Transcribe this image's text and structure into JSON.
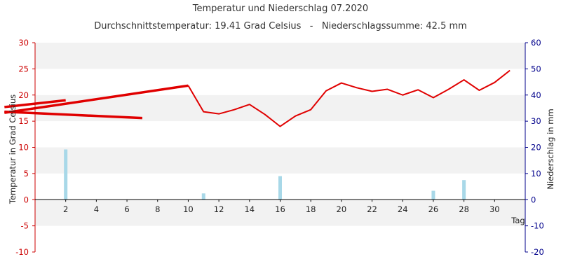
{
  "chart_data": {
    "type": "line",
    "title": "Temperatur und Niederschlag 07.2020",
    "subtitle": "Durchschnittstemperatur: 19.41 Grad Celsius   -   Niederschlagssumme: 42.5 mm",
    "xlabel": "Tag",
    "ylabel_left": "Temperatur in Grad Celsius",
    "ylabel_right": "Niederschlag in mm",
    "xlim": [
      0,
      32
    ],
    "ylim_left": [
      -10,
      30
    ],
    "ylim_right": [
      -20,
      60
    ],
    "x_ticks": [
      2,
      4,
      6,
      8,
      10,
      12,
      14,
      16,
      18,
      20,
      22,
      24,
      26,
      28,
      30
    ],
    "y_ticks_left": [
      -10,
      -5,
      0,
      5,
      10,
      15,
      20,
      25,
      30
    ],
    "y_ticks_right": [
      -20,
      -10,
      0,
      10,
      20,
      30,
      40,
      50,
      60
    ],
    "grid": "horizontal bands",
    "colors": {
      "temperature": "#e00000",
      "precipitation": "#a8d8e8",
      "left_axis": "#cc0000",
      "right_axis": "#00008b",
      "band": "#f2f2f2"
    },
    "series": [
      {
        "kind": "line",
        "axis": "left",
        "x": [
          10,
          11,
          12,
          13,
          14,
          15,
          16,
          17,
          18,
          19,
          20,
          21,
          22,
          23,
          24,
          25,
          26,
          27,
          28,
          29,
          30,
          31
        ],
        "values": [
          21.8,
          16.8,
          16.4,
          17.2,
          18.2,
          16.3,
          14.0,
          16.0,
          17.2,
          20.8,
          22.3,
          21.4,
          20.7,
          21.1,
          20.0,
          21.0,
          19.5,
          21.1,
          22.9,
          20.9,
          22.4,
          24.7
        ]
      },
      {
        "kind": "bar",
        "axis": "right",
        "x": [
          2,
          11,
          16,
          26,
          28
        ],
        "values": [
          19.2,
          2.4,
          9.0,
          3.4,
          7.5
        ]
      }
    ],
    "artifacts": [
      {
        "x": [
          -2,
          2
        ],
        "values": [
          17.7,
          19.0
        ]
      },
      {
        "x": [
          -2,
          10
        ],
        "values": [
          16.6,
          21.8
        ]
      },
      {
        "x": [
          -2,
          7
        ],
        "values": [
          16.8,
          15.6
        ]
      }
    ]
  }
}
